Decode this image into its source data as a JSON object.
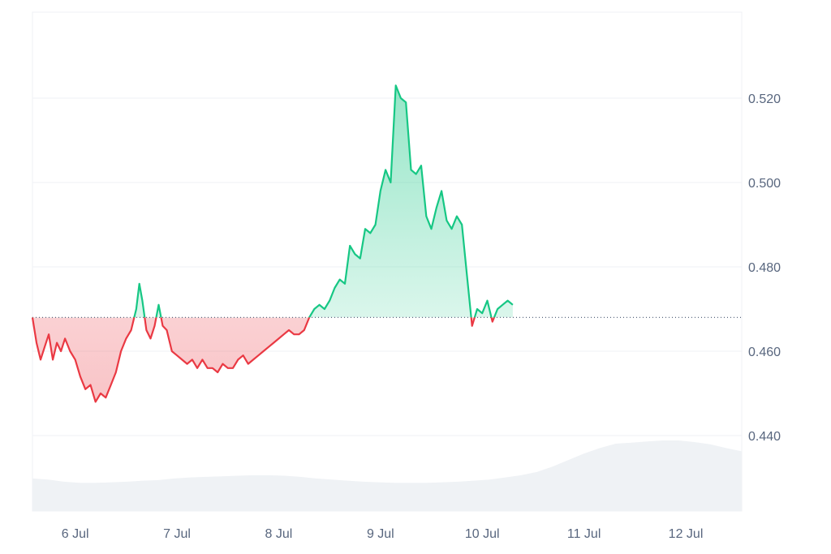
{
  "chart_data": {
    "type": "area",
    "title": "",
    "xlabel": "",
    "ylabel": "",
    "ylim": [
      0.42,
      0.54
    ],
    "y_ticks": [
      "0.440",
      "0.460",
      "0.480",
      "0.500",
      "0.520"
    ],
    "y_tick_values": [
      0.44,
      0.46,
      0.48,
      0.5,
      0.52
    ],
    "x_ticks": [
      "6 Jul",
      "7 Jul",
      "8 Jul",
      "9 Jul",
      "10 Jul",
      "11 Jul",
      "12 Jul"
    ],
    "x_range_days": [
      5.58,
      12.55
    ],
    "baseline": 0.468,
    "grid": true,
    "colors": {
      "up_line": "#16c784",
      "down_line": "#ea3943",
      "up_fill": "#16c784",
      "down_fill": "#ea3943",
      "volume": "#eff2f5",
      "grid": "#eff2f5",
      "baseline": "#58667e"
    },
    "series": [
      {
        "values": [
          [
            5.58,
            0.468
          ],
          [
            5.62,
            0.462
          ],
          [
            5.66,
            0.458
          ],
          [
            5.7,
            0.461
          ],
          [
            5.74,
            0.464
          ],
          [
            5.78,
            0.458
          ],
          [
            5.82,
            0.462
          ],
          [
            5.86,
            0.46
          ],
          [
            5.9,
            0.463
          ],
          [
            5.95,
            0.46
          ],
          [
            6.0,
            0.458
          ],
          [
            6.05,
            0.454
          ],
          [
            6.1,
            0.451
          ],
          [
            6.15,
            0.452
          ],
          [
            6.2,
            0.448
          ],
          [
            6.25,
            0.45
          ],
          [
            6.3,
            0.449
          ],
          [
            6.35,
            0.452
          ],
          [
            6.4,
            0.455
          ],
          [
            6.45,
            0.46
          ],
          [
            6.5,
            0.463
          ],
          [
            6.55,
            0.465
          ],
          [
            6.6,
            0.47
          ],
          [
            6.63,
            0.476
          ],
          [
            6.66,
            0.472
          ],
          [
            6.7,
            0.465
          ],
          [
            6.74,
            0.463
          ],
          [
            6.78,
            0.466
          ],
          [
            6.82,
            0.471
          ],
          [
            6.86,
            0.466
          ],
          [
            6.9,
            0.465
          ],
          [
            6.95,
            0.46
          ],
          [
            7.0,
            0.459
          ],
          [
            7.05,
            0.458
          ],
          [
            7.1,
            0.457
          ],
          [
            7.15,
            0.458
          ],
          [
            7.2,
            0.456
          ],
          [
            7.25,
            0.458
          ],
          [
            7.3,
            0.456
          ],
          [
            7.35,
            0.456
          ],
          [
            7.4,
            0.455
          ],
          [
            7.45,
            0.457
          ],
          [
            7.5,
            0.456
          ],
          [
            7.55,
            0.456
          ],
          [
            7.6,
            0.458
          ],
          [
            7.65,
            0.459
          ],
          [
            7.7,
            0.457
          ],
          [
            7.75,
            0.458
          ],
          [
            7.8,
            0.459
          ],
          [
            7.85,
            0.46
          ],
          [
            7.9,
            0.461
          ],
          [
            7.95,
            0.462
          ],
          [
            8.0,
            0.463
          ],
          [
            8.05,
            0.464
          ],
          [
            8.1,
            0.465
          ],
          [
            8.15,
            0.464
          ],
          [
            8.2,
            0.464
          ],
          [
            8.25,
            0.465
          ],
          [
            8.3,
            0.468
          ],
          [
            8.35,
            0.47
          ],
          [
            8.4,
            0.471
          ],
          [
            8.45,
            0.47
          ],
          [
            8.5,
            0.472
          ],
          [
            8.55,
            0.475
          ],
          [
            8.6,
            0.477
          ],
          [
            8.65,
            0.476
          ],
          [
            8.7,
            0.485
          ],
          [
            8.75,
            0.483
          ],
          [
            8.8,
            0.482
          ],
          [
            8.85,
            0.489
          ],
          [
            8.9,
            0.488
          ],
          [
            8.95,
            0.49
          ],
          [
            9.0,
            0.498
          ],
          [
            9.05,
            0.503
          ],
          [
            9.1,
            0.5
          ],
          [
            9.15,
            0.523
          ],
          [
            9.2,
            0.52
          ],
          [
            9.25,
            0.519
          ],
          [
            9.3,
            0.503
          ],
          [
            9.35,
            0.502
          ],
          [
            9.4,
            0.504
          ],
          [
            9.45,
            0.492
          ],
          [
            9.5,
            0.489
          ],
          [
            9.55,
            0.494
          ],
          [
            9.6,
            0.498
          ],
          [
            9.65,
            0.491
          ],
          [
            9.7,
            0.489
          ],
          [
            9.75,
            0.492
          ],
          [
            9.8,
            0.49
          ],
          [
            9.85,
            0.478
          ],
          [
            9.9,
            0.466
          ],
          [
            9.95,
            0.47
          ],
          [
            10.0,
            0.469
          ],
          [
            10.05,
            0.472
          ],
          [
            10.1,
            0.467
          ],
          [
            10.15,
            0.47
          ],
          [
            10.2,
            0.471
          ],
          [
            10.25,
            0.472
          ],
          [
            10.3,
            0.471
          ]
        ]
      }
    ],
    "volume": [
      0.3,
      0.28,
      0.24,
      0.22,
      0.22,
      0.23,
      0.24,
      0.26,
      0.27,
      0.3,
      0.32,
      0.33,
      0.34,
      0.35,
      0.36,
      0.36,
      0.35,
      0.33,
      0.3,
      0.28,
      0.26,
      0.24,
      0.23,
      0.22,
      0.22,
      0.22,
      0.23,
      0.24,
      0.26,
      0.28,
      0.32,
      0.36,
      0.42,
      0.52,
      0.64,
      0.76,
      0.86,
      0.94,
      0.96,
      0.98,
      1.0,
      1.0,
      0.97,
      0.93,
      0.86,
      0.8
    ]
  }
}
